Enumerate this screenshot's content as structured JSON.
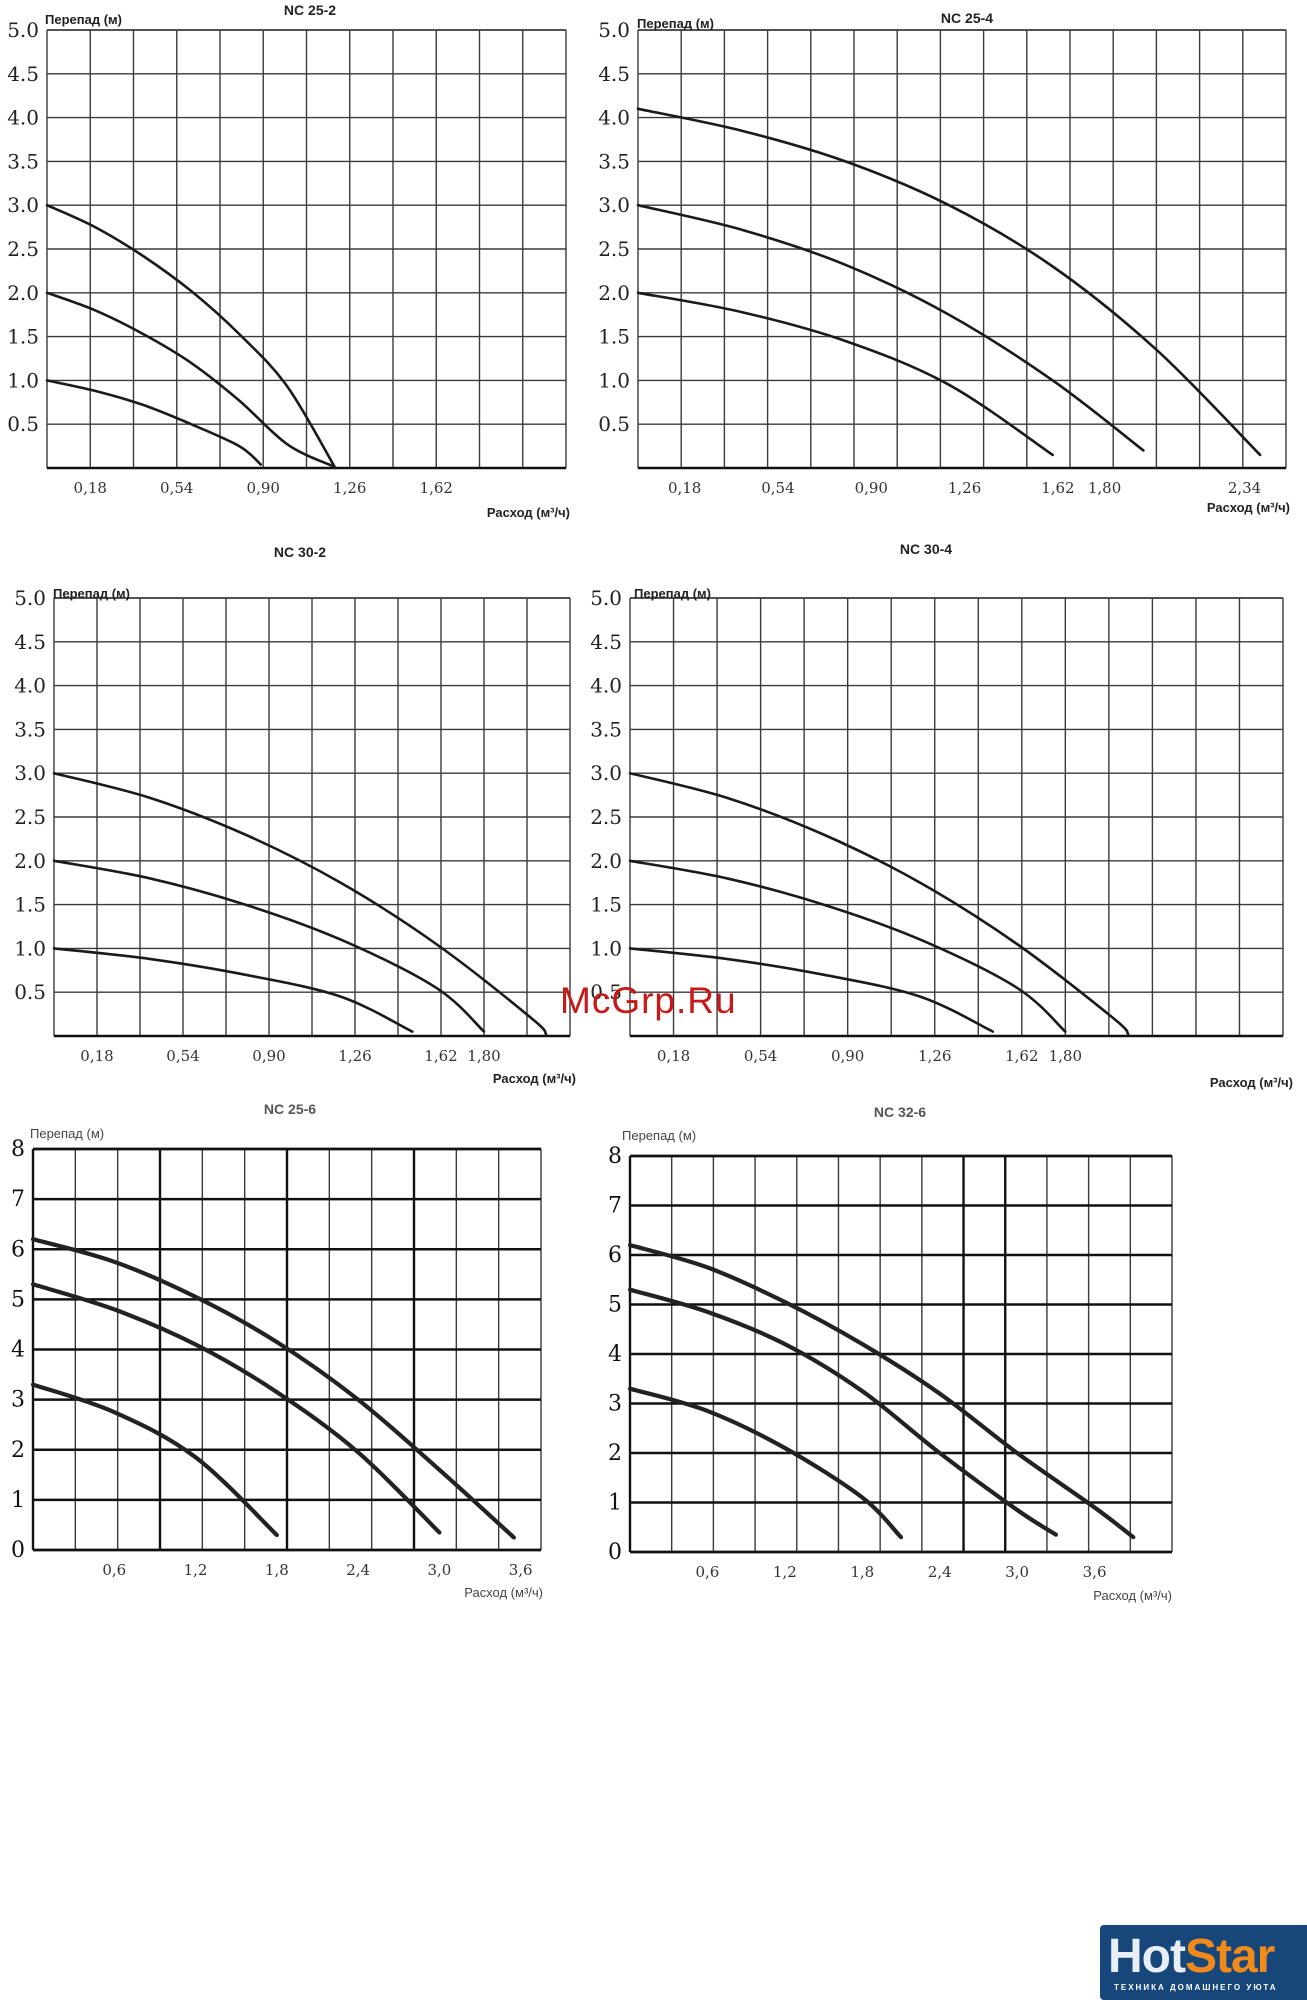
{
  "watermark": "McGrp.Ru",
  "logo": {
    "text_main": "Hot",
    "text_accent": "Star",
    "tagline": "ТЕХНИКА ДОМАШНЕГО УЮТА"
  },
  "chart_data": [
    {
      "type": "line",
      "title": "NC 25-2",
      "ylabel": "Перепад (м)",
      "xlabel": "Расход (м³/ч)",
      "xlim": [
        0,
        2.16
      ],
      "ylim": [
        0,
        5.0
      ],
      "x_ticks": [
        "0,18",
        "0,54",
        "0,90",
        "1,26",
        "1,62"
      ],
      "x_tick_values": [
        0.18,
        0.54,
        0.9,
        1.26,
        1.62
      ],
      "y_ticks": [
        "0.5",
        "1.0",
        "1.5",
        "2.0",
        "2.5",
        "3.0",
        "3.5",
        "4.0",
        "4.5",
        "5.0"
      ],
      "y_tick_values": [
        0.5,
        1.0,
        1.5,
        2.0,
        2.5,
        3.0,
        3.5,
        4.0,
        4.5,
        5.0
      ],
      "grid": true,
      "series": [
        {
          "x": [
            0,
            0.2,
            0.4,
            0.6,
            0.8,
            1.0,
            1.2
          ],
          "y": [
            3.0,
            2.75,
            2.42,
            2.02,
            1.53,
            0.93,
            0.0
          ]
        },
        {
          "x": [
            0,
            0.2,
            0.4,
            0.6,
            0.8,
            1.0,
            1.19
          ],
          "y": [
            2.0,
            1.8,
            1.53,
            1.2,
            0.77,
            0.27,
            0.02
          ]
        },
        {
          "x": [
            0,
            0.2,
            0.4,
            0.6,
            0.8,
            0.89
          ],
          "y": [
            1.0,
            0.88,
            0.72,
            0.5,
            0.25,
            0.04
          ]
        }
      ]
    },
    {
      "type": "line",
      "title": "NC 25-4",
      "ylabel": "Перепад (м)",
      "xlabel": "Расход (м³/ч)",
      "xlim": [
        0,
        2.5
      ],
      "ylim": [
        0,
        5.0
      ],
      "x_ticks": [
        "0,18",
        "0,54",
        "0,90",
        "1,26",
        "1,62",
        "1,80",
        "2,34"
      ],
      "x_tick_values": [
        0.18,
        0.54,
        0.9,
        1.26,
        1.62,
        1.8,
        2.34
      ],
      "y_ticks": [
        "0.5",
        "1.0",
        "1.5",
        "2.0",
        "2.5",
        "3.0",
        "3.5",
        "4.0",
        "4.5",
        "5.0"
      ],
      "y_tick_values": [
        0.5,
        1.0,
        1.5,
        2.0,
        2.5,
        3.0,
        3.5,
        4.0,
        4.5,
        5.0
      ],
      "grid": true,
      "series": [
        {
          "x": [
            0,
            0.4,
            0.8,
            1.2,
            1.6,
            2.0,
            2.4
          ],
          "y": [
            4.1,
            3.85,
            3.5,
            3.0,
            2.3,
            1.35,
            0.15
          ]
        },
        {
          "x": [
            0,
            0.4,
            0.8,
            1.2,
            1.6,
            1.95
          ],
          "y": [
            3.0,
            2.72,
            2.32,
            1.75,
            1.0,
            0.2
          ]
        },
        {
          "x": [
            0,
            0.4,
            0.8,
            1.2,
            1.6
          ],
          "y": [
            2.0,
            1.78,
            1.45,
            0.95,
            0.15
          ]
        }
      ]
    },
    {
      "type": "line",
      "title": "NC 30-2",
      "ylabel": "Перепад (м)",
      "xlabel": "Расход (м³/ч)",
      "xlim": [
        0,
        2.16
      ],
      "ylim": [
        0,
        5.0
      ],
      "x_ticks": [
        "0,18",
        "0,54",
        "0,90",
        "1,26",
        "1,62",
        "1,80"
      ],
      "x_tick_values": [
        0.18,
        0.54,
        0.9,
        1.26,
        1.62,
        1.8
      ],
      "y_ticks": [
        "0.5",
        "1.0",
        "1.5",
        "2.0",
        "2.5",
        "3.0",
        "3.5",
        "4.0",
        "4.5",
        "5.0"
      ],
      "y_tick_values": [
        0.5,
        1.0,
        1.5,
        2.0,
        2.5,
        3.0,
        3.5,
        4.0,
        4.5,
        5.0
      ],
      "grid": true,
      "series": [
        {
          "x": [
            0,
            0.4,
            0.8,
            1.2,
            1.6,
            2.0,
            2.06
          ],
          "y": [
            3.0,
            2.72,
            2.3,
            1.75,
            1.05,
            0.2,
            0.02
          ]
        },
        {
          "x": [
            0,
            0.4,
            0.8,
            1.2,
            1.6,
            1.8
          ],
          "y": [
            2.0,
            1.8,
            1.5,
            1.1,
            0.55,
            0.05
          ]
        },
        {
          "x": [
            0,
            0.4,
            0.8,
            1.2,
            1.5
          ],
          "y": [
            1.0,
            0.88,
            0.7,
            0.45,
            0.05
          ]
        }
      ]
    },
    {
      "type": "line",
      "title": "NC 30-4",
      "ylabel": "Перепад (м)",
      "xlabel": "Расход (м³/ч)",
      "xlim": [
        0,
        2.7
      ],
      "ylim": [
        0,
        5.0
      ],
      "x_ticks": [
        "0,18",
        "0,54",
        "0,90",
        "1,26",
        "1,62",
        "1,80"
      ],
      "x_tick_values": [
        0.18,
        0.54,
        0.9,
        1.26,
        1.62,
        1.8
      ],
      "y_ticks": [
        "0.5",
        "1.0",
        "1.5",
        "2.0",
        "2.5",
        "3.0",
        "3.5",
        "4.0",
        "4.5",
        "5.0"
      ],
      "y_tick_values": [
        0.5,
        1.0,
        1.5,
        2.0,
        2.5,
        3.0,
        3.5,
        4.0,
        4.5,
        5.0
      ],
      "grid": true,
      "series": [
        {
          "x": [
            0,
            0.4,
            0.8,
            1.2,
            1.6,
            2.0,
            2.06
          ],
          "y": [
            3.0,
            2.72,
            2.3,
            1.75,
            1.05,
            0.2,
            0.02
          ]
        },
        {
          "x": [
            0,
            0.4,
            0.8,
            1.2,
            1.6,
            1.8
          ],
          "y": [
            2.0,
            1.8,
            1.5,
            1.1,
            0.55,
            0.05
          ]
        },
        {
          "x": [
            0,
            0.4,
            0.8,
            1.2,
            1.5
          ],
          "y": [
            1.0,
            0.88,
            0.7,
            0.45,
            0.05
          ]
        }
      ]
    },
    {
      "type": "line",
      "title": "NC 25-6",
      "ylabel": "Перепад (м)",
      "xlabel": "Расход (м³/ч)",
      "xlim": [
        0,
        3.75
      ],
      "ylim": [
        0,
        8
      ],
      "x_ticks": [
        "0,6",
        "1,2",
        "1,8",
        "2,4",
        "3,0",
        "3,6"
      ],
      "x_tick_values": [
        0.6,
        1.2,
        1.8,
        2.4,
        3.0,
        3.6
      ],
      "y_ticks": [
        "0",
        "1",
        "2",
        "3",
        "4",
        "5",
        "6",
        "7",
        "8"
      ],
      "y_tick_values": [
        0,
        1,
        2,
        3,
        4,
        5,
        6,
        7,
        8
      ],
      "grid": true,
      "series": [
        {
          "x": [
            0,
            0.6,
            1.2,
            1.8,
            2.4,
            3.0,
            3.55
          ],
          "y": [
            6.2,
            5.75,
            5.05,
            4.15,
            3.0,
            1.6,
            0.25
          ]
        },
        {
          "x": [
            0,
            0.6,
            1.2,
            1.8,
            2.4,
            3.0
          ],
          "y": [
            5.3,
            4.8,
            4.1,
            3.15,
            1.95,
            0.35
          ]
        },
        {
          "x": [
            0,
            0.6,
            1.2,
            1.8
          ],
          "y": [
            3.3,
            2.75,
            1.85,
            0.3
          ]
        }
      ]
    },
    {
      "type": "line",
      "title": "NC 32-6",
      "ylabel": "Перепад (м)",
      "xlabel": "Расход (м³/ч)",
      "xlim": [
        0,
        4.2
      ],
      "ylim": [
        0,
        8
      ],
      "x_ticks": [
        "0,6",
        "1,2",
        "1,8",
        "2,4",
        "3,0",
        "3,6"
      ],
      "x_tick_values": [
        0.6,
        1.2,
        1.8,
        2.4,
        3.0,
        3.6
      ],
      "y_ticks": [
        "0",
        "1",
        "2",
        "3",
        "4",
        "5",
        "6",
        "7",
        "8"
      ],
      "y_tick_values": [
        0,
        1,
        2,
        3,
        4,
        5,
        6,
        7,
        8
      ],
      "grid": true,
      "series": [
        {
          "x": [
            0,
            0.6,
            1.2,
            1.8,
            2.4,
            3.0,
            3.6,
            3.9
          ],
          "y": [
            6.2,
            5.75,
            5.05,
            4.2,
            3.2,
            2.0,
            0.9,
            0.3
          ]
        },
        {
          "x": [
            0,
            0.6,
            1.2,
            1.8,
            2.4,
            3.0,
            3.3
          ],
          "y": [
            5.3,
            4.85,
            4.2,
            3.25,
            2.0,
            0.85,
            0.35
          ]
        },
        {
          "x": [
            0,
            0.6,
            1.2,
            1.8,
            2.1
          ],
          "y": [
            3.3,
            2.85,
            2.1,
            1.1,
            0.3
          ]
        }
      ]
    }
  ]
}
